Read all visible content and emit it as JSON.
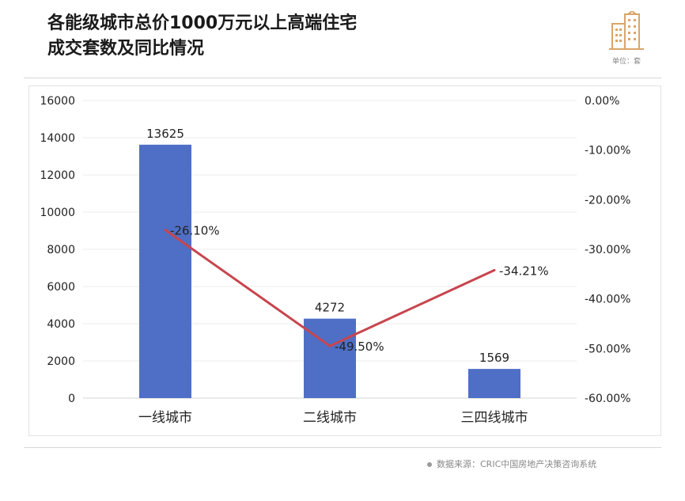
{
  "header": {
    "title_line1": "各能级城市总价1000万元以上高端住宅",
    "title_line2": "成交套数及同比情况",
    "unit": "单位：套"
  },
  "footer": {
    "source": "数据来源：CRIC中国房地产决策咨询系统"
  },
  "colors": {
    "bar": "#4E6FC5",
    "line": "#C8454E",
    "logo": "#D9A56A"
  },
  "chart_data": {
    "type": "bar",
    "categories": [
      "一线城市",
      "二线城市",
      "三四线城市"
    ],
    "series": [
      {
        "values": [
          13625,
          4272,
          1569
        ],
        "labels": [
          "13625",
          "4272",
          "1569"
        ],
        "axis": "left",
        "kind": "bar"
      },
      {
        "values": [
          -26.1,
          -49.5,
          -34.21
        ],
        "labels": [
          "-26.10%",
          "-49.50%",
          "-34.21%"
        ],
        "axis": "right",
        "kind": "line"
      }
    ],
    "y_left": {
      "ylim": [
        0,
        16000
      ],
      "ticks": [
        "0",
        "2000",
        "4000",
        "6000",
        "8000",
        "10000",
        "12000",
        "14000",
        "16000"
      ]
    },
    "y_right": {
      "ylim": [
        -60,
        0
      ],
      "ticks": [
        "-60.00%",
        "-50.00%",
        "-40.00%",
        "-30.00%",
        "-20.00%",
        "-10.00%",
        "0.00%"
      ]
    },
    "grid": true,
    "legend": "none"
  }
}
